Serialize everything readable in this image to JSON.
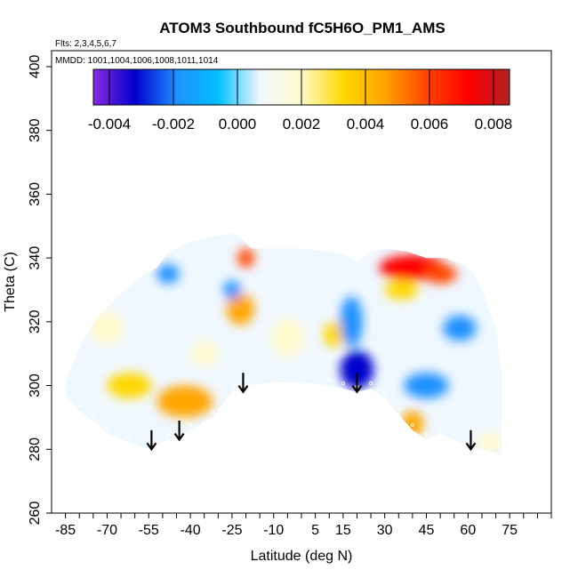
{
  "chart_data": {
    "type": "heatmap",
    "title": "ATOM3 Southbound fC5H6O_PM1_AMS",
    "flights_note": "Flts: 2,3,4,5,6,7",
    "dates_note": "MMDD: 1001,1004,1006,1008,1011,1014",
    "xlabel": "Latitude (deg N)",
    "ylabel": "Theta (C)",
    "xlim": [
      -90,
      90
    ],
    "ylim": [
      260,
      405
    ],
    "x_ticks": [
      -85,
      -70,
      -55,
      -40,
      -25,
      -10,
      5,
      15,
      30,
      45,
      60,
      75
    ],
    "x_tick_labels": [
      "-85",
      "-70",
      "-55",
      "-40",
      "-25",
      "-10",
      "5",
      "15",
      "30",
      "45",
      "60",
      "75"
    ],
    "y_ticks": [
      260,
      280,
      300,
      320,
      340,
      360,
      380,
      400
    ],
    "y_tick_labels": [
      "260",
      "280",
      "300",
      "320",
      "340",
      "360",
      "380",
      "400"
    ],
    "colorbar": {
      "min": -0.0045,
      "max": 0.0085,
      "ticks": [
        -0.004,
        -0.002,
        0.0,
        0.002,
        0.004,
        0.006,
        0.008
      ],
      "tick_labels": [
        "-0.004",
        "-0.002",
        "0.000",
        "0.002",
        "0.004",
        "0.006",
        "0.008"
      ],
      "colors": [
        "#8a2be2",
        "#0000cd",
        "#1e90ff",
        "#00bfff",
        "#f0f8ff",
        "#fffacd",
        "#ffd700",
        "#ffa500",
        "#ff4500",
        "#ff0000",
        "#b22222"
      ]
    },
    "background_value": 0.0003,
    "bottom_boundary": [
      [
        -85,
        297
      ],
      [
        -80,
        292
      ],
      [
        -75,
        289
      ],
      [
        -70,
        285
      ],
      [
        -62,
        282
      ],
      [
        -55,
        280
      ],
      [
        -48,
        283
      ],
      [
        -40,
        286
      ],
      [
        -32,
        290
      ],
      [
        -24,
        299
      ],
      [
        -20,
        300
      ],
      [
        -10,
        301
      ],
      [
        0,
        301
      ],
      [
        10,
        300
      ],
      [
        15,
        299
      ],
      [
        20,
        298
      ],
      [
        25,
        299
      ],
      [
        30,
        296
      ],
      [
        35,
        291
      ],
      [
        40,
        286
      ],
      [
        45,
        283
      ],
      [
        50,
        285
      ],
      [
        55,
        283
      ],
      [
        60,
        281
      ],
      [
        65,
        280
      ],
      [
        72,
        278
      ]
    ],
    "top_boundary": [
      [
        -85,
        301
      ],
      [
        -80,
        312
      ],
      [
        -74,
        321
      ],
      [
        -65,
        329
      ],
      [
        -58,
        334
      ],
      [
        -52,
        337
      ],
      [
        -48,
        342
      ],
      [
        -40,
        345
      ],
      [
        -30,
        347
      ],
      [
        -24,
        348
      ],
      [
        -18,
        343
      ],
      [
        -10,
        343
      ],
      [
        0,
        343
      ],
      [
        10,
        342
      ],
      [
        15,
        341
      ],
      [
        20,
        339
      ],
      [
        25,
        342
      ],
      [
        30,
        343
      ],
      [
        38,
        342
      ],
      [
        45,
        340
      ],
      [
        52,
        340
      ],
      [
        58,
        338
      ],
      [
        62,
        335
      ],
      [
        66,
        328
      ],
      [
        70,
        318
      ],
      [
        72,
        305
      ]
    ],
    "features": [
      {
        "x": -42,
        "y": 295,
        "rx": 10,
        "ry": 5,
        "value": 0.0048
      },
      {
        "x": -62,
        "y": 300,
        "rx": 8,
        "ry": 4,
        "value": 0.0028
      },
      {
        "x": -22,
        "y": 324,
        "rx": 5,
        "ry": 5,
        "value": 0.0045
      },
      {
        "x": -20,
        "y": 340,
        "rx": 3,
        "ry": 3,
        "value": 0.0055
      },
      {
        "x": 12,
        "y": 316,
        "rx": 4,
        "ry": 4,
        "value": 0.0035
      },
      {
        "x": 40,
        "y": 337,
        "rx": 12,
        "ry": 4,
        "value": 0.0068
      },
      {
        "x": 50,
        "y": 335,
        "rx": 6,
        "ry": 3,
        "value": 0.006
      },
      {
        "x": 36,
        "y": 330,
        "rx": 6,
        "ry": 3,
        "value": 0.0032
      },
      {
        "x": 20,
        "y": 305,
        "rx": 6,
        "ry": 6,
        "value": -0.0028
      },
      {
        "x": 18,
        "y": 320,
        "rx": 4,
        "ry": 8,
        "value": -0.0018
      },
      {
        "x": -48,
        "y": 335,
        "rx": 4,
        "ry": 3,
        "value": -0.0022
      },
      {
        "x": -25,
        "y": 330,
        "rx": 3,
        "ry": 3,
        "value": -0.0022
      },
      {
        "x": 45,
        "y": 300,
        "rx": 8,
        "ry": 4,
        "value": -0.0014
      },
      {
        "x": 57,
        "y": 318,
        "rx": 6,
        "ry": 4,
        "value": -0.0014
      },
      {
        "x": 40,
        "y": 288,
        "rx": 4,
        "ry": 4,
        "value": 0.004
      },
      {
        "x": 68,
        "y": 282,
        "rx": 5,
        "ry": 3,
        "value": 0.0026
      },
      {
        "x": -5,
        "y": 315,
        "rx": 6,
        "ry": 6,
        "value": 0.0014
      },
      {
        "x": -70,
        "y": 318,
        "rx": 6,
        "ry": 5,
        "value": 0.002
      },
      {
        "x": -35,
        "y": 310,
        "rx": 5,
        "ry": 4,
        "value": 0.0022
      }
    ],
    "arrows": [
      {
        "lat": -54,
        "theta_top": 286,
        "theta_bottom": 280
      },
      {
        "lat": -44,
        "theta_top": 289,
        "theta_bottom": 283
      },
      {
        "lat": -21,
        "theta_top": 304,
        "theta_bottom": 298
      },
      {
        "lat": 20,
        "theta_top": 304,
        "theta_bottom": 298
      },
      {
        "lat": 61,
        "theta_top": 286,
        "theta_bottom": 280
      }
    ]
  }
}
